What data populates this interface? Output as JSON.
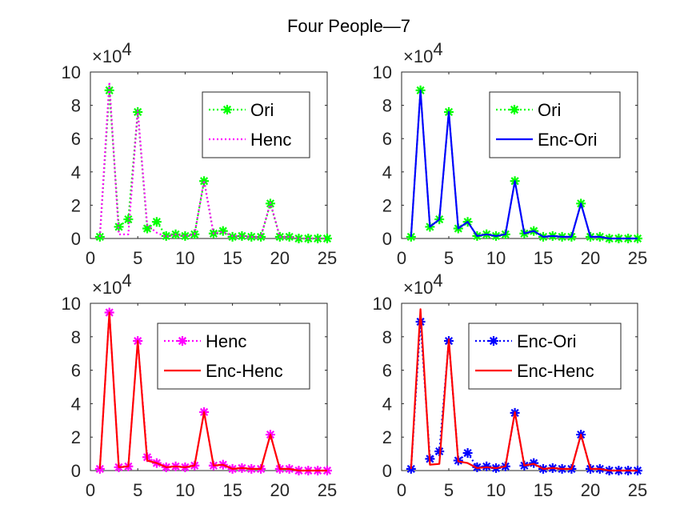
{
  "title": "Four People—7",
  "axis_defaults": {
    "xlim": [
      0,
      25
    ],
    "ylim": [
      0,
      100000
    ],
    "xticks": [
      0,
      5,
      10,
      15,
      20,
      25
    ],
    "yticks": [
      0,
      20000,
      40000,
      60000,
      80000,
      100000
    ],
    "ytick_labels": [
      "0",
      "2",
      "4",
      "6",
      "8",
      "10"
    ],
    "exponent_label": "×10",
    "exponent_power": "4"
  },
  "chart_data": [
    {
      "type": "line",
      "grid": false,
      "legend_position": "top-right",
      "x": [
        1,
        2,
        3,
        4,
        5,
        6,
        7,
        8,
        9,
        10,
        11,
        12,
        13,
        14,
        15,
        16,
        17,
        18,
        19,
        20,
        21,
        22,
        23,
        24,
        25
      ],
      "series": [
        {
          "name": "Ori",
          "color": "#00ff00",
          "line_style": "dotted",
          "marker": "asterisk",
          "values": [
            1000,
            89000,
            7000,
            11500,
            76000,
            6000,
            10000,
            1500,
            2500,
            1500,
            2500,
            34500,
            3000,
            4500,
            1000,
            1500,
            1000,
            1000,
            21000,
            1000,
            1000,
            0,
            0,
            0,
            0
          ]
        },
        {
          "name": "Henc",
          "color": "#ff00ff",
          "line_style": "dotted",
          "marker": "none",
          "values": [
            1000,
            94000,
            2500,
            2500,
            77000,
            8000,
            3500,
            1000,
            2500,
            1500,
            2500,
            35000,
            3000,
            4000,
            1500,
            1500,
            1000,
            1000,
            21500,
            1000,
            1000,
            0,
            0,
            0,
            0
          ]
        }
      ]
    },
    {
      "type": "line",
      "grid": false,
      "legend_position": "top-right",
      "x": [
        1,
        2,
        3,
        4,
        5,
        6,
        7,
        8,
        9,
        10,
        11,
        12,
        13,
        14,
        15,
        16,
        17,
        18,
        19,
        20,
        21,
        22,
        23,
        24,
        25
      ],
      "series": [
        {
          "name": "Ori",
          "color": "#00ff00",
          "line_style": "dotted",
          "marker": "asterisk",
          "values": [
            1000,
            89000,
            7000,
            11500,
            76000,
            6000,
            10000,
            1500,
            2500,
            1500,
            2500,
            34500,
            3000,
            4500,
            1000,
            1500,
            1000,
            1000,
            21000,
            1000,
            1000,
            0,
            0,
            0,
            0
          ]
        },
        {
          "name": "Enc-Ori",
          "color": "#0000ff",
          "line_style": "solid",
          "marker": "none",
          "values": [
            1000,
            89000,
            7000,
            11500,
            76000,
            6000,
            10000,
            1500,
            2500,
            1500,
            2500,
            34500,
            3000,
            4500,
            1000,
            1500,
            1000,
            1000,
            21000,
            1000,
            1000,
            0,
            0,
            0,
            0
          ]
        }
      ]
    },
    {
      "type": "line",
      "grid": false,
      "legend_position": "top-right",
      "x": [
        1,
        2,
        3,
        4,
        5,
        6,
        7,
        8,
        9,
        10,
        11,
        12,
        13,
        14,
        15,
        16,
        17,
        18,
        19,
        20,
        21,
        22,
        23,
        24,
        25
      ],
      "series": [
        {
          "name": "Henc",
          "color": "#ff00ff",
          "line_style": "dotted",
          "marker": "asterisk",
          "values": [
            1000,
            94500,
            2000,
            2500,
            77500,
            8000,
            4500,
            2000,
            2500,
            2000,
            3000,
            35000,
            3000,
            3500,
            1000,
            1500,
            1000,
            1000,
            21500,
            1000,
            1000,
            0,
            0,
            0,
            0
          ]
        },
        {
          "name": "Enc-Henc",
          "color": "#ff0000",
          "line_style": "solid",
          "marker": "none",
          "values": [
            1000,
            94500,
            2000,
            2500,
            77500,
            6000,
            4500,
            2000,
            2500,
            2000,
            3000,
            35000,
            3000,
            3500,
            1000,
            1500,
            1000,
            1000,
            21500,
            1000,
            1000,
            0,
            0,
            0,
            0
          ]
        }
      ]
    },
    {
      "type": "line",
      "grid": false,
      "legend_position": "top-right",
      "x": [
        1,
        2,
        3,
        4,
        5,
        6,
        7,
        8,
        9,
        10,
        11,
        12,
        13,
        14,
        15,
        16,
        17,
        18,
        19,
        20,
        21,
        22,
        23,
        24,
        25
      ],
      "series": [
        {
          "name": "Enc-Ori",
          "color": "#0000ff",
          "line_style": "dotted",
          "marker": "asterisk",
          "values": [
            1000,
            89000,
            7000,
            11500,
            77500,
            6000,
            10500,
            2000,
            2500,
            1500,
            2500,
            34500,
            3000,
            4500,
            1000,
            1500,
            1000,
            1000,
            21500,
            1000,
            1000,
            0,
            0,
            0,
            0
          ]
        },
        {
          "name": "Enc-Henc",
          "color": "#ff0000",
          "line_style": "solid",
          "marker": "none",
          "values": [
            1000,
            96500,
            3500,
            4000,
            78500,
            5500,
            4500,
            1500,
            2000,
            1500,
            2500,
            35000,
            3000,
            4000,
            1000,
            1500,
            1000,
            1000,
            21500,
            1000,
            1000,
            0,
            0,
            0,
            0
          ]
        }
      ]
    }
  ]
}
